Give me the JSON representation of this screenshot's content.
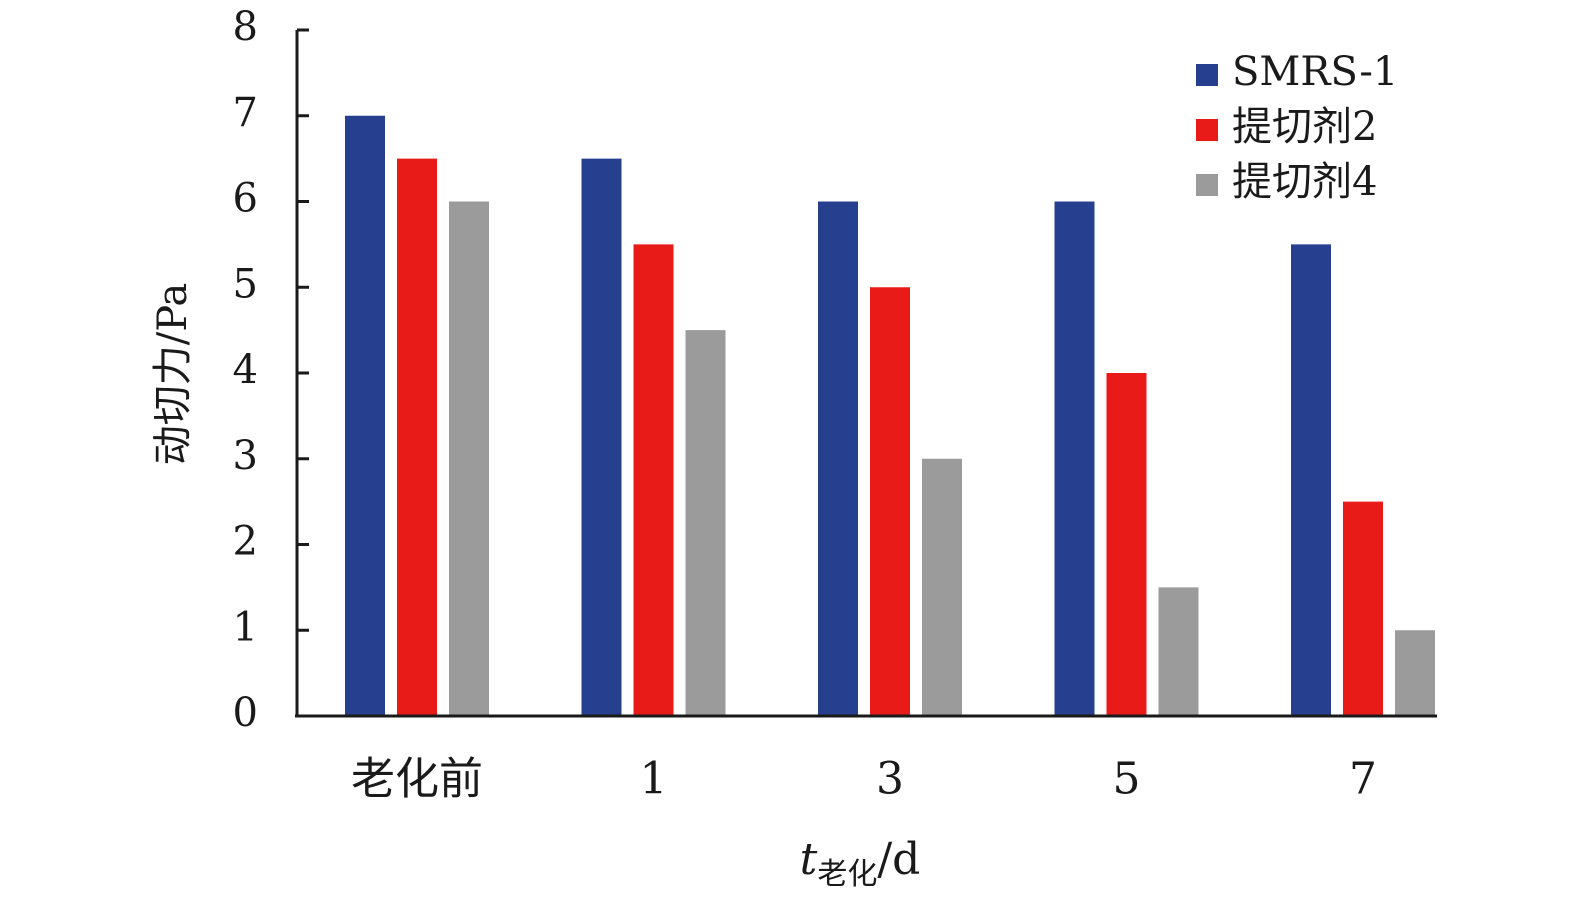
{
  "chart_data": {
    "type": "bar",
    "categories": [
      "老化前",
      "1",
      "3",
      "5",
      "7"
    ],
    "series": [
      {
        "name": "SMRS-1",
        "values": [
          7,
          6.5,
          6,
          6,
          5.5
        ],
        "color": "#263F8F"
      },
      {
        "name": "提切剂2",
        "values": [
          6.5,
          5.5,
          5,
          4,
          2.5
        ],
        "color": "#E81B19"
      },
      {
        "name": "提切剂4",
        "values": [
          6,
          4.5,
          3,
          1.5,
          1
        ],
        "color": "#9B9B9B"
      }
    ],
    "ylim": [
      0,
      8
    ],
    "yticks": [
      "0",
      "1",
      "2",
      "3",
      "4",
      "5",
      "6",
      "7",
      "8"
    ],
    "ylabel": "动切力/Pa",
    "xlabel": {
      "main": "t",
      "sub": "老化",
      "unit": "/d"
    },
    "legend_position": "top-right",
    "grid": false
  }
}
